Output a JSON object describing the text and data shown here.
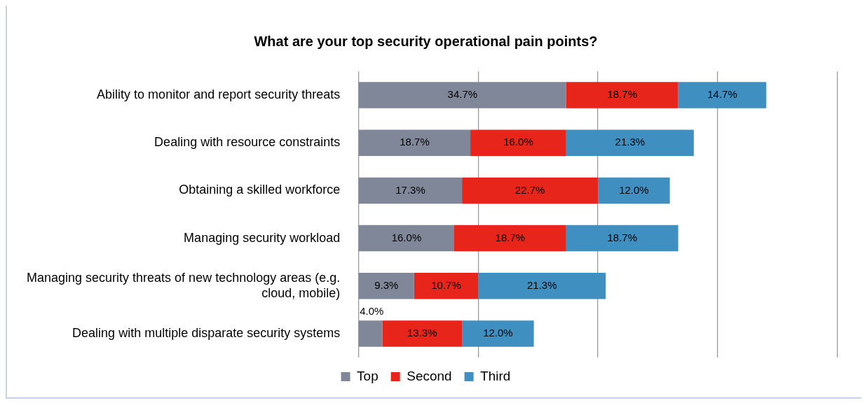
{
  "chart_data": {
    "type": "bar",
    "orientation": "horizontal",
    "stacked": true,
    "title": "What are your top security operational pain points?",
    "categories": [
      "Ability to monitor and report security threats",
      "Dealing with resource constraints",
      "Obtaining a skilled workforce",
      "Managing security workload",
      "Managing security threats of new technology areas (e.g. cloud, mobile)",
      "Dealing with multiple disparate security systems"
    ],
    "series": [
      {
        "name": "Top",
        "color": "#7f8798",
        "values": [
          34.7,
          18.7,
          17.3,
          16.0,
          9.3,
          4.0
        ],
        "value_labels": [
          "34.7%",
          "18.7%",
          "17.3%",
          "16.0%",
          "9.3%",
          "4.0%"
        ]
      },
      {
        "name": "Second",
        "color": "#e8251b",
        "values": [
          18.7,
          16.0,
          22.7,
          18.7,
          10.7,
          13.3
        ],
        "value_labels": [
          "18.7%",
          "16.0%",
          "22.7%",
          "18.7%",
          "10.7%",
          "13.3%"
        ]
      },
      {
        "name": "Third",
        "color": "#3f8fc0",
        "values": [
          14.7,
          21.3,
          12.0,
          18.7,
          21.3,
          12.0
        ],
        "value_labels": [
          "14.7%",
          "21.3%",
          "12.0%",
          "18.7%",
          "21.3%",
          "12.0%"
        ]
      }
    ],
    "xlim": [
      0,
      80
    ],
    "xticks": [
      {
        "value": 0,
        "label": null
      },
      {
        "value": 20,
        "label": null
      },
      {
        "value": 40,
        "label": null
      },
      {
        "value": 60,
        "label": null
      },
      {
        "value": 80,
        "label": null
      }
    ],
    "grid": "x",
    "legend": "bottom",
    "tick_labels": "y"
  }
}
